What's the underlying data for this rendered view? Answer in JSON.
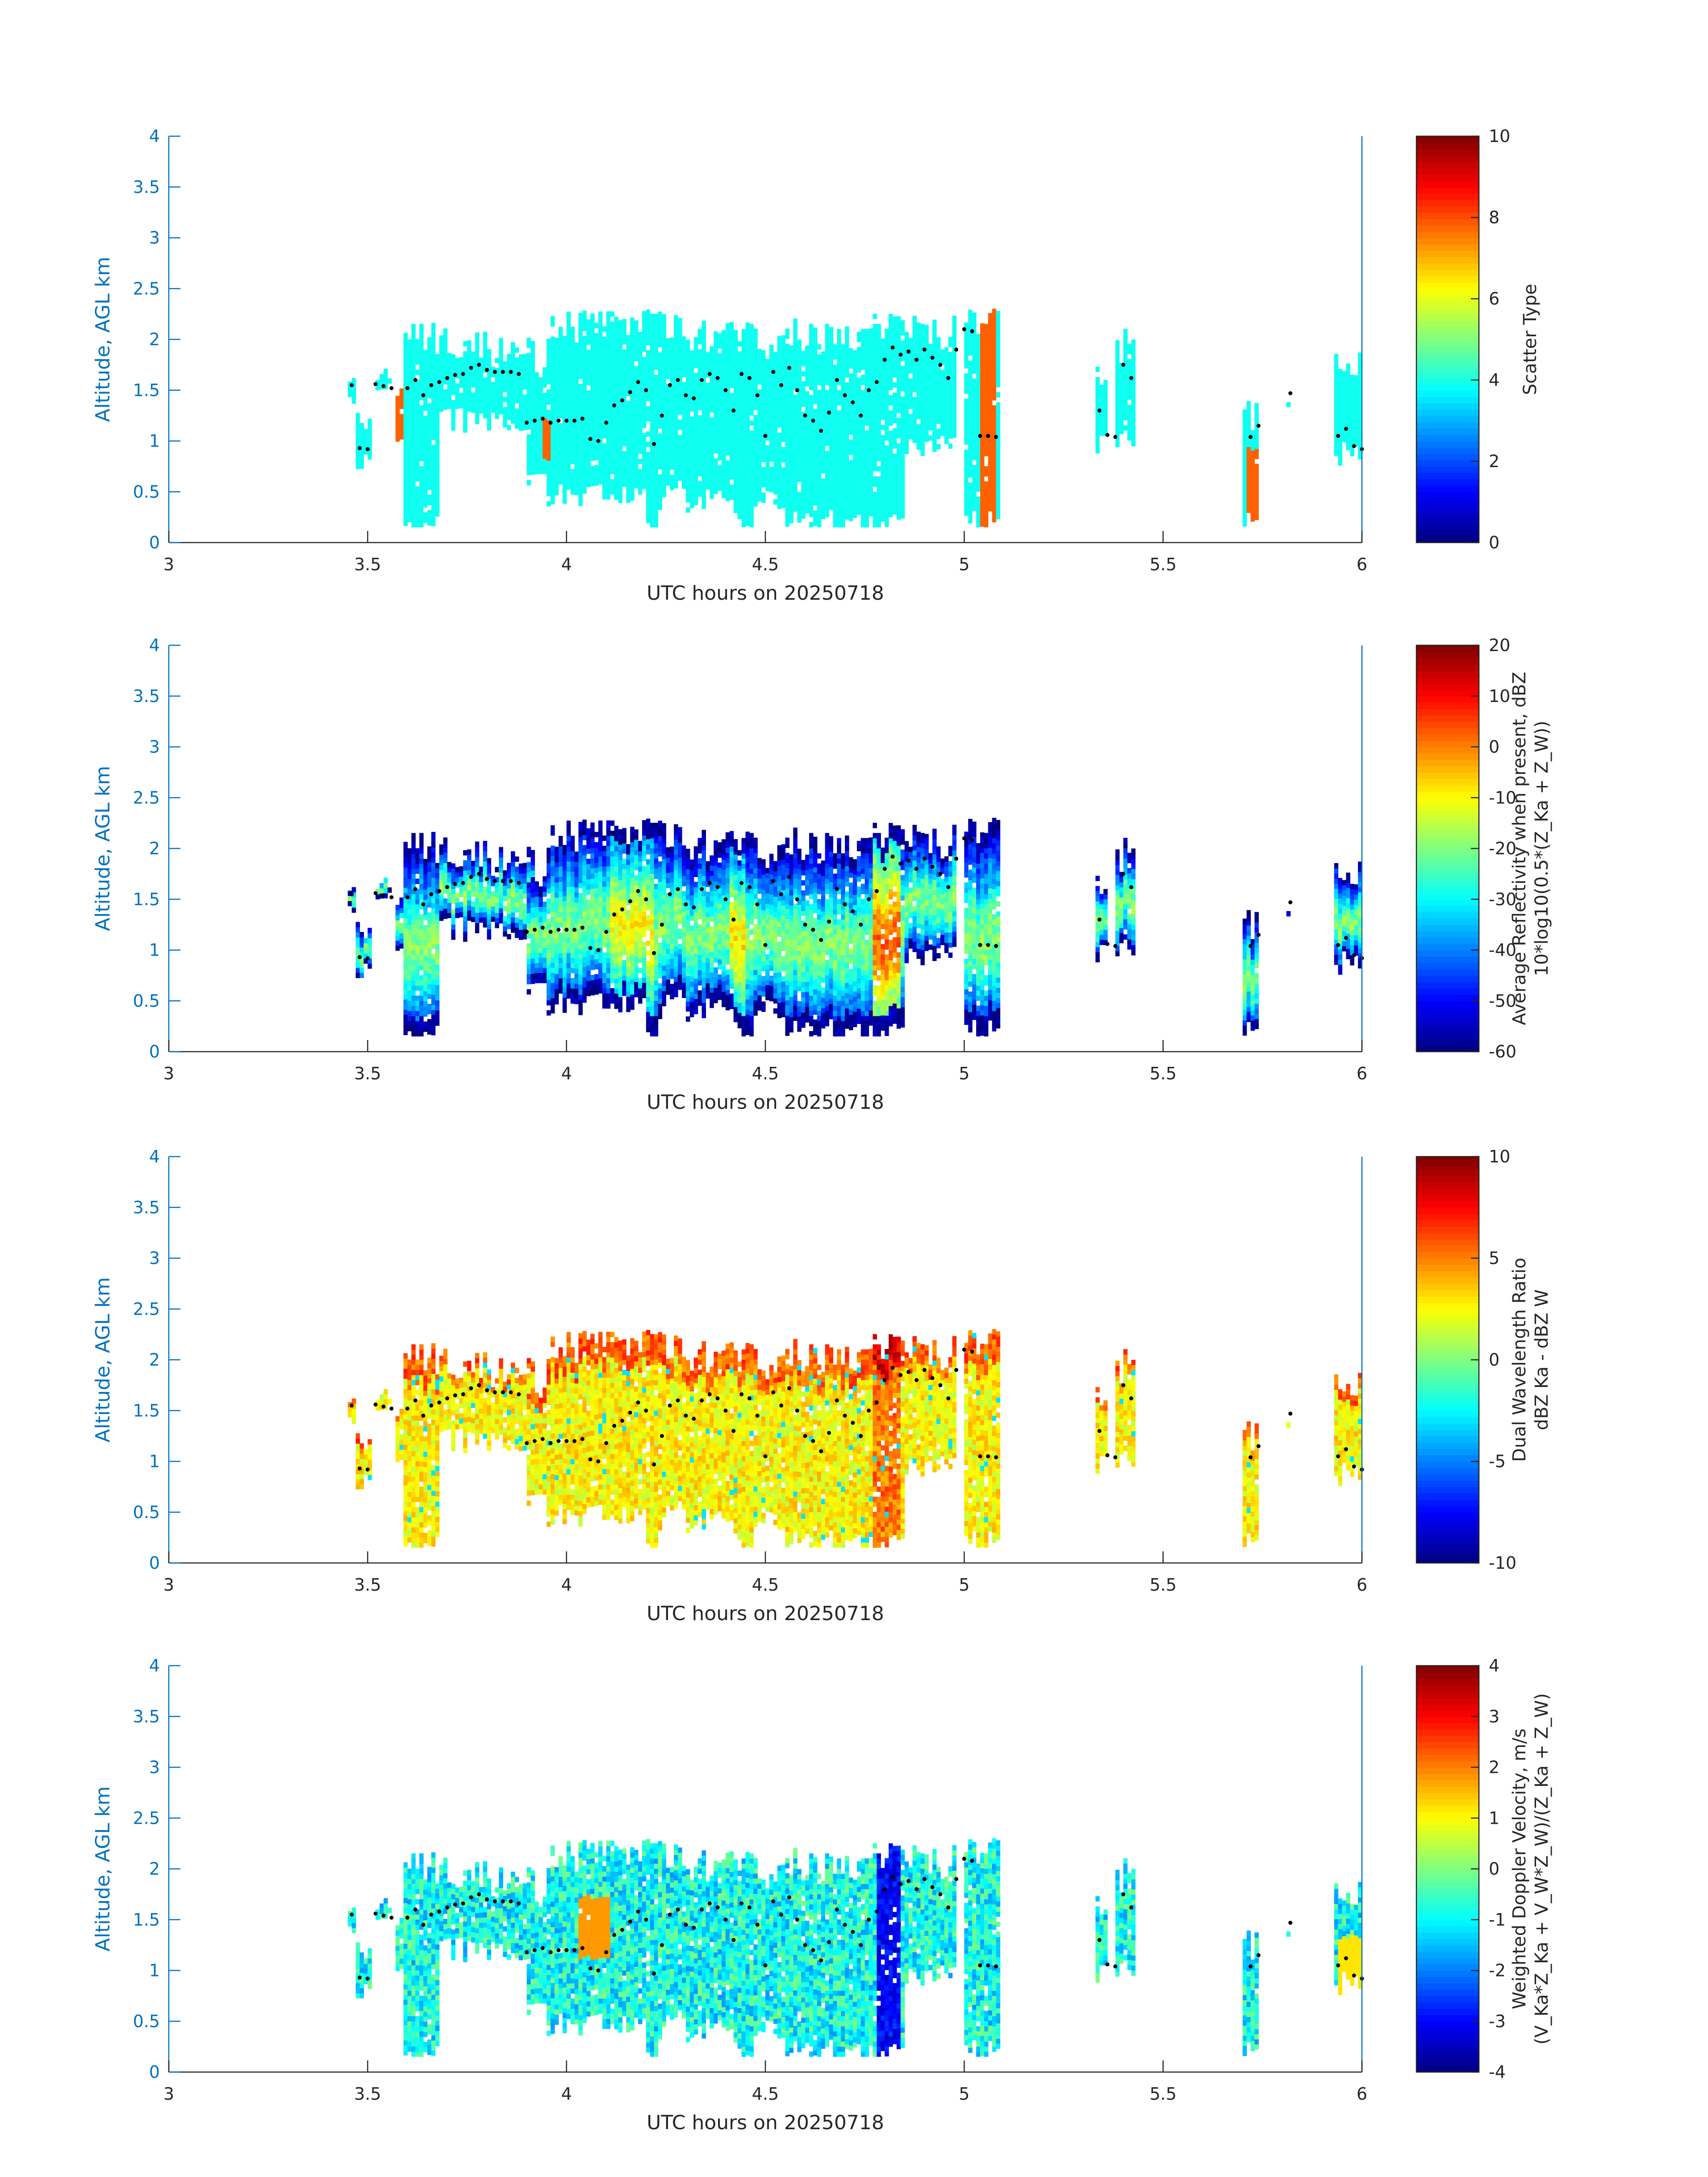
{
  "chart_data": [
    {
      "type": "heatmap",
      "xlabel": "UTC hours on 20250718",
      "ylabel": "Altitude, AGL km",
      "xlim": [
        3,
        6
      ],
      "ylim": [
        0,
        4
      ],
      "xticks": [
        "3",
        "3.5",
        "4",
        "4.5",
        "5",
        "5.5",
        "6"
      ],
      "yticks": [
        "0",
        "0.5",
        "1",
        "1.5",
        "2",
        "2.5",
        "3",
        "3.5",
        "4"
      ],
      "colorbar": {
        "label_lines": [
          "Scatter Type"
        ],
        "range": [
          0,
          10
        ],
        "ticks": [
          "0",
          "2",
          "4",
          "6",
          "8",
          "10"
        ]
      },
      "field": "scatter_type"
    },
    {
      "type": "heatmap",
      "xlabel": "UTC hours on 20250718",
      "ylabel": "Altitude, AGL km",
      "xlim": [
        3,
        6
      ],
      "ylim": [
        0,
        4
      ],
      "xticks": [
        "3",
        "3.5",
        "4",
        "4.5",
        "5",
        "5.5",
        "6"
      ],
      "yticks": [
        "0",
        "0.5",
        "1",
        "1.5",
        "2",
        "2.5",
        "3",
        "3.5",
        "4"
      ],
      "colorbar": {
        "label_lines": [
          "Average Reflectivity when present, dBZ",
          "10*log10(0.5*(Z_Ka + Z_W))"
        ],
        "range": [
          -60,
          20
        ],
        "ticks": [
          "-60",
          "-50",
          "-40",
          "-30",
          "-20",
          "-10",
          "0",
          "10",
          "20"
        ]
      },
      "field": "reflectivity"
    },
    {
      "type": "heatmap",
      "xlabel": "UTC hours on 20250718",
      "ylabel": "Altitude, AGL km",
      "xlim": [
        3,
        6
      ],
      "ylim": [
        0,
        4
      ],
      "xticks": [
        "3",
        "3.5",
        "4",
        "4.5",
        "5",
        "5.5",
        "6"
      ],
      "yticks": [
        "0",
        "0.5",
        "1",
        "1.5",
        "2",
        "2.5",
        "3",
        "3.5",
        "4"
      ],
      "colorbar": {
        "label_lines": [
          "Dual Wavelength Ratio",
          "dBZ Ka - dBZ W"
        ],
        "range": [
          -10,
          10
        ],
        "ticks": [
          "-10",
          "-5",
          "0",
          "5",
          "10"
        ]
      },
      "field": "dwr"
    },
    {
      "type": "heatmap",
      "xlabel": "UTC hours on 20250718",
      "ylabel": "Altitude, AGL km",
      "xlim": [
        3,
        6
      ],
      "ylim": [
        0,
        4
      ],
      "xticks": [
        "3",
        "3.5",
        "4",
        "4.5",
        "5",
        "5.5",
        "6"
      ],
      "yticks": [
        "0",
        "0.5",
        "1",
        "1.5",
        "2",
        "2.5",
        "3",
        "3.5",
        "4"
      ],
      "colorbar": {
        "label_lines": [
          "Weighted Doppler Velocity, m/s",
          "(V_Ka*Z_Ka + V_W*Z_W)/(Z_Ka + Z_W)"
        ],
        "range": [
          -4,
          4
        ],
        "ticks": [
          "-4",
          "-3",
          "-2",
          "-1",
          "0",
          "1",
          "2",
          "3",
          "4"
        ]
      },
      "field": "velocity"
    }
  ],
  "cloud_layer_heights": {
    "x": [
      3.46,
      3.48,
      3.5,
      3.52,
      3.54,
      3.56,
      3.6,
      3.62,
      3.64,
      3.66,
      3.68,
      3.7,
      3.72,
      3.74,
      3.76,
      3.78,
      3.8,
      3.82,
      3.84,
      3.86,
      3.88,
      3.9,
      3.92,
      3.94,
      3.96,
      3.98,
      4.0,
      4.02,
      4.04,
      4.06,
      4.08,
      4.1,
      4.12,
      4.14,
      4.16,
      4.18,
      4.2,
      4.22,
      4.24,
      4.26,
      4.28,
      4.3,
      4.32,
      4.34,
      4.36,
      4.38,
      4.4,
      4.42,
      4.44,
      4.46,
      4.48,
      4.5,
      4.52,
      4.54,
      4.56,
      4.58,
      4.6,
      4.62,
      4.64,
      4.66,
      4.68,
      4.7,
      4.72,
      4.74,
      4.76,
      4.78,
      4.8,
      4.82,
      4.84,
      4.86,
      4.88,
      4.9,
      4.92,
      4.94,
      4.96,
      4.98,
      5.0,
      5.02,
      5.04,
      5.06,
      5.08,
      5.34,
      5.36,
      5.38,
      5.4,
      5.42,
      5.72,
      5.74,
      5.82,
      5.94,
      5.96,
      5.98,
      6.0
    ],
    "y": [
      1.55,
      0.93,
      0.92,
      1.56,
      1.54,
      1.52,
      1.52,
      1.6,
      1.45,
      1.55,
      1.58,
      1.62,
      1.65,
      1.66,
      1.72,
      1.75,
      1.7,
      1.68,
      1.68,
      1.68,
      1.66,
      1.18,
      1.2,
      1.22,
      1.18,
      1.2,
      1.2,
      1.2,
      1.22,
      1.02,
      1.0,
      1.18,
      1.35,
      1.4,
      1.48,
      1.58,
      1.5,
      0.97,
      1.25,
      1.55,
      1.6,
      1.45,
      1.42,
      1.6,
      1.66,
      1.62,
      1.5,
      1.3,
      1.66,
      1.62,
      1.45,
      1.05,
      1.68,
      1.55,
      1.72,
      1.5,
      1.25,
      1.2,
      1.1,
      1.28,
      1.6,
      1.45,
      1.38,
      1.25,
      1.5,
      1.58,
      1.8,
      1.92,
      1.85,
      1.88,
      1.8,
      1.9,
      1.82,
      1.75,
      1.62,
      1.9,
      2.1,
      2.08,
      1.05,
      1.05,
      1.04,
      1.3,
      1.06,
      1.04,
      1.75,
      1.62,
      1.04,
      1.15,
      1.47,
      1.05,
      1.12,
      0.95,
      0.92
    ]
  }
}
